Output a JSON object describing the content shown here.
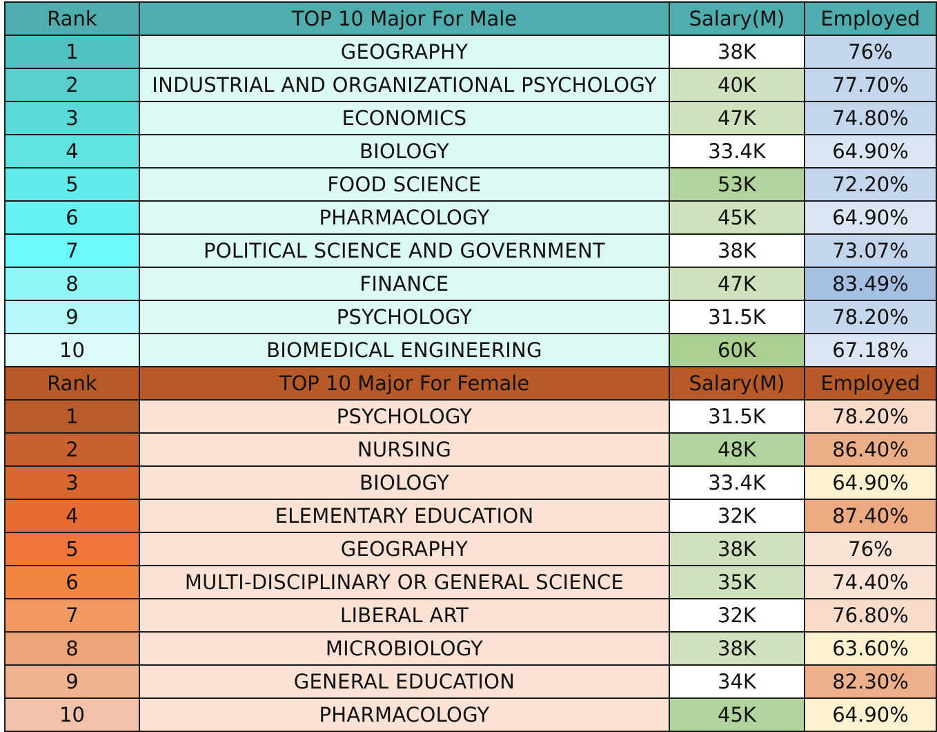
{
  "male": {
    "header": {
      "rank": "Rank",
      "major": "TOP 10 Major For Male",
      "salary": "Salary(M)",
      "employed": "Employed",
      "color": "#4fadad"
    },
    "major_bg": "#dcfaf3",
    "rows": [
      {
        "rank": "1",
        "major": "GEOGRAPHY",
        "salary": "38K",
        "employed": "76%",
        "rank_color": "#4fc3c3",
        "salary_color": "#ffffff",
        "employed_color": "#c4d6ec"
      },
      {
        "rank": "2",
        "major": "INDUSTRIAL AND ORGANIZATIONAL PSYCHOLOGY",
        "salary": "40K",
        "employed": "77.70%",
        "rank_color": "#56cfcd",
        "salary_color": "#cfe1bd",
        "employed_color": "#c4d6ec"
      },
      {
        "rank": "3",
        "major": "ECONOMICS",
        "salary": "47K",
        "employed": "74.80%",
        "rank_color": "#5bd9d8",
        "salary_color": "#cfe1bd",
        "employed_color": "#c4d6ec"
      },
      {
        "rank": "4",
        "major": "BIOLOGY",
        "salary": "33.4K",
        "employed": "64.90%",
        "rank_color": "#5fe3e3",
        "salary_color": "#ffffff",
        "employed_color": "#dce6f2"
      },
      {
        "rank": "5",
        "major": "FOOD SCIENCE",
        "salary": "53K",
        "employed": "72.20%",
        "rank_color": "#63ebeb",
        "salary_color": "#b2d39b",
        "employed_color": "#c4d6ec"
      },
      {
        "rank": "6",
        "major": "PHARMACOLOGY",
        "salary": "45K",
        "employed": "64.90%",
        "rank_color": "#66f2f2",
        "salary_color": "#cfe1bd",
        "employed_color": "#dce6f2"
      },
      {
        "rank": "7",
        "major": "POLITICAL SCIENCE AND GOVERNMENT",
        "salary": "38K",
        "employed": "73.07%",
        "rank_color": "#6bf9f9",
        "salary_color": "#ffffff",
        "employed_color": "#c4d6ec"
      },
      {
        "rank": "8",
        "major": "FINANCE",
        "salary": "47K",
        "employed": "83.49%",
        "rank_color": "#8ef8f8",
        "salary_color": "#cfe1bd",
        "employed_color": "#a6c0e3"
      },
      {
        "rank": "9",
        "major": "PSYCHOLOGY",
        "salary": "31.5K",
        "employed": "78.20%",
        "rank_color": "#b3f8f8",
        "salary_color": "#ffffff",
        "employed_color": "#c4d6ec"
      },
      {
        "rank": "10",
        "major": "BIOMEDICAL ENGINEERING",
        "salary": "60K",
        "employed": "67.18%",
        "rank_color": "#ddfafa",
        "salary_color": "#aacf8f",
        "employed_color": "#dce6f2"
      }
    ]
  },
  "female": {
    "header": {
      "rank": "Rank",
      "major": "TOP 10 Major For Female",
      "salary": "Salary(M)",
      "employed": "Employed",
      "color": "#b85a28"
    },
    "major_bg": "#fbe2d5",
    "rows": [
      {
        "rank": "1",
        "major": "PSYCHOLOGY",
        "salary": "31.5K",
        "employed": "78.20%",
        "rank_color": "#b85c2b",
        "salary_color": "#ffffff",
        "employed_color": "#f8dcc9"
      },
      {
        "rank": "2",
        "major": "NURSING",
        "salary": "48K",
        "employed": "86.40%",
        "rank_color": "#c9622e",
        "salary_color": "#b2d39b",
        "employed_color": "#ecae86"
      },
      {
        "rank": "3",
        "major": "BIOLOGY",
        "salary": "33.4K",
        "employed": "64.90%",
        "rank_color": "#d76631",
        "salary_color": "#ffffff",
        "employed_color": "#fdf2d0"
      },
      {
        "rank": "4",
        "major": "ELEMENTARY EDUCATION",
        "salary": "32K",
        "employed": "87.40%",
        "rank_color": "#e56d34",
        "salary_color": "#ffffff",
        "employed_color": "#eca982"
      },
      {
        "rank": "5",
        "major": "GEOGRAPHY",
        "salary": "38K",
        "employed": "76%",
        "rank_color": "#ee753b",
        "salary_color": "#cfe1bd",
        "employed_color": "#fae2d4"
      },
      {
        "rank": "6",
        "major": "MULTI-DISCIPLINARY OR GENERAL SCIENCE",
        "salary": "35K",
        "employed": "74.40%",
        "rank_color": "#f1843f",
        "salary_color": "#cfe1bd",
        "employed_color": "#fae2d4"
      },
      {
        "rank": "7",
        "major": "LIBERAL ART",
        "salary": "32K",
        "employed": "76.80%",
        "rank_color": "#f09a62",
        "salary_color": "#ffffff",
        "employed_color": "#f8dcc9"
      },
      {
        "rank": "8",
        "major": "MICROBIOLOGY",
        "salary": "38K",
        "employed": "63.60%",
        "rank_color": "#eea37b",
        "salary_color": "#cfe1bd",
        "employed_color": "#fdf2d0"
      },
      {
        "rank": "9",
        "major": "GENERAL EDUCATION",
        "salary": "34K",
        "employed": "82.30%",
        "rank_color": "#f0b28f",
        "salary_color": "#ffffff",
        "employed_color": "#eeb08c"
      },
      {
        "rank": "10",
        "major": "PHARMACOLOGY",
        "salary": "45K",
        "employed": "64.90%",
        "rank_color": "#f1c2ab",
        "salary_color": "#b2d39b",
        "employed_color": "#fdf2d0"
      }
    ]
  }
}
